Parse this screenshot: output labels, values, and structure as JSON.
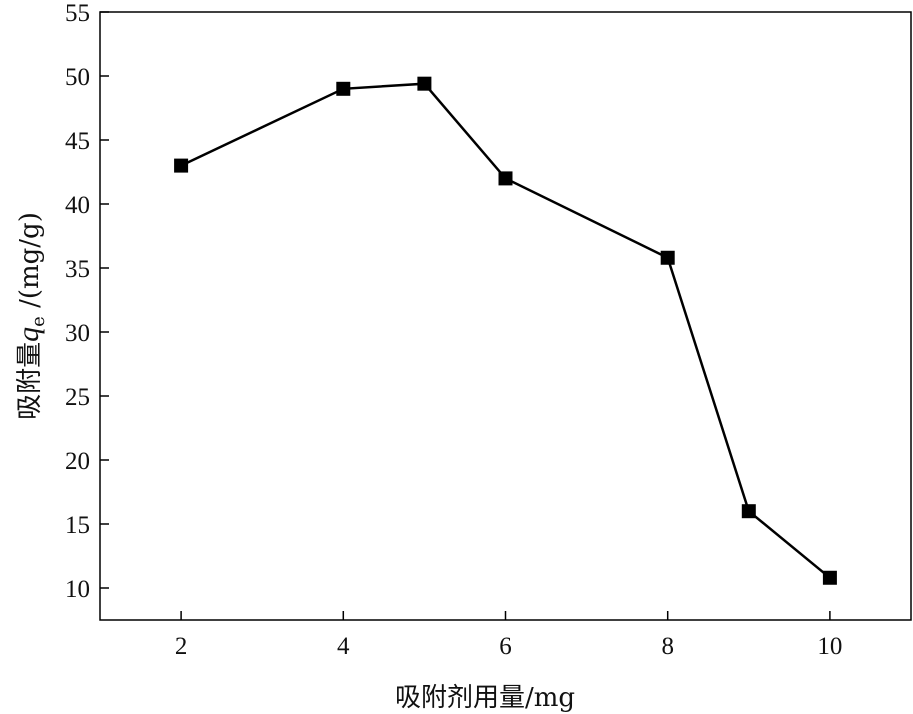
{
  "chart_data": {
    "type": "line",
    "title": "",
    "xlabel": "吸附剂用量/mg",
    "ylabel": {
      "prefix": "吸附量",
      "symbol": "q",
      "subscript": "e",
      "unit": " /(mg/g)"
    },
    "x": [
      2,
      4,
      5,
      6,
      8,
      9,
      10
    ],
    "series": [
      {
        "values": [
          43.0,
          49.0,
          49.4,
          42.0,
          35.8,
          16.0,
          10.8
        ]
      }
    ],
    "xticks": [
      2,
      4,
      6,
      8,
      10
    ],
    "yticks": [
      10,
      15,
      20,
      25,
      30,
      35,
      40,
      45,
      50,
      55
    ],
    "xlim": [
      1,
      11
    ],
    "ylim": [
      7.5,
      55
    ],
    "grid": false,
    "legend": "none",
    "marker": "square",
    "line_color": "#000000"
  }
}
